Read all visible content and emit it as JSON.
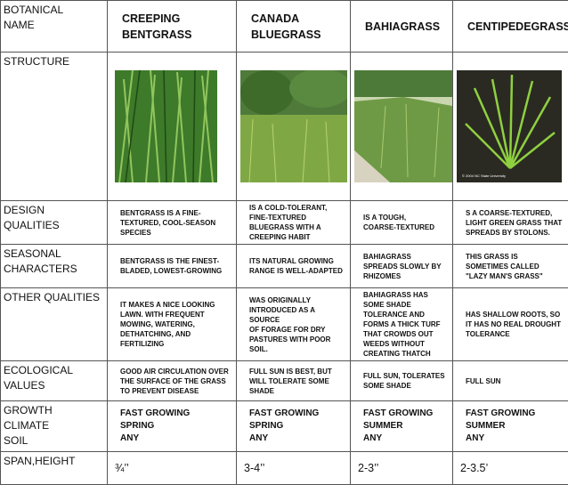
{
  "table": {
    "header": [
      "BOTANICAL\nNAME",
      "CREEPING\nBENTGRASS",
      "CANADA\nBLUEGRASS",
      "BAHIAGRASS",
      "CENTIPEDEGRASS"
    ],
    "structure": {
      "label": "STRUCTURE",
      "image_caption": "© 2004 NC State University"
    },
    "rows": [
      {
        "label": "DESIGN\nQUALITIES",
        "cells": [
          "BENTGRASS IS A FINE-TEXTURED, COOL-SEASON SPECIES",
          "IS A COLD-TOLERANT, FINE-TEXTURED BLUEGRASS WITH A CREEPING HABIT",
          "IS A TOUGH,\nCOARSE-TEXTURED",
          "S A COARSE-TEXTURED, LIGHT GREEN GRASS THAT SPREADS BY STOLONS."
        ]
      },
      {
        "label": "SEASONAL\nCHARACTERS",
        "cells": [
          "BENTGRASS IS THE FINEST-BLADED, LOWEST-GROWING",
          "ITS NATURAL GROWING RANGE IS WELL-ADAPTED",
          "BAHIAGRASS\nSPREADS SLOWLY BY\nRHIZOMES",
          "THIS GRASS IS\nSOMETIMES CALLED\n\"LAZY MAN'S GRASS\""
        ]
      },
      {
        "label": "OTHER QUALITIES",
        "cells": [
          "IT MAKES A NICE LOOKING LAWN. WITH FREQUENT MOWING, WATERING, DETHATCHING, AND FERTILIZING",
          "WAS ORIGINALLY\nINTRODUCED AS A SOURCE\nOF FORAGE FOR DRY\nPASTURES WITH POOR\nSOIL.",
          "BAHIAGRASS HAS SOME SHADE TOLERANCE AND FORMS A THICK TURF THAT CROWDS OUT WEEDS WITHOUT CREATING THATCH",
          "HAS SHALLOW ROOTS, SO IT HAS NO REAL DROUGHT TOLERANCE"
        ]
      },
      {
        "label": "ECOLOGICAL\nVALUES",
        "cells": [
          "GOOD AIR CIRCULATION OVER THE SURFACE OF THE GRASS TO PREVENT DISEASE",
          "FULL SUN IS BEST, BUT WILL TOLERATE SOME SHADE",
          "FULL SUN, TOLERATES SOME SHADE",
          "FULL SUN"
        ]
      },
      {
        "label": "GROWTH\nCLIMATE\nSOIL",
        "cells": [
          "FAST GROWING\nSPRING\nANY",
          "FAST GROWING\nSPRING\nANY",
          "FAST GROWING\nSUMMER\nANY",
          "FAST GROWING\nSUMMER\nANY"
        ]
      },
      {
        "label": "SPAN,HEIGHT",
        "cells": [
          "¾’’",
          "3-4’’",
          "2-3’’",
          "2-3.5’"
        ]
      }
    ]
  }
}
